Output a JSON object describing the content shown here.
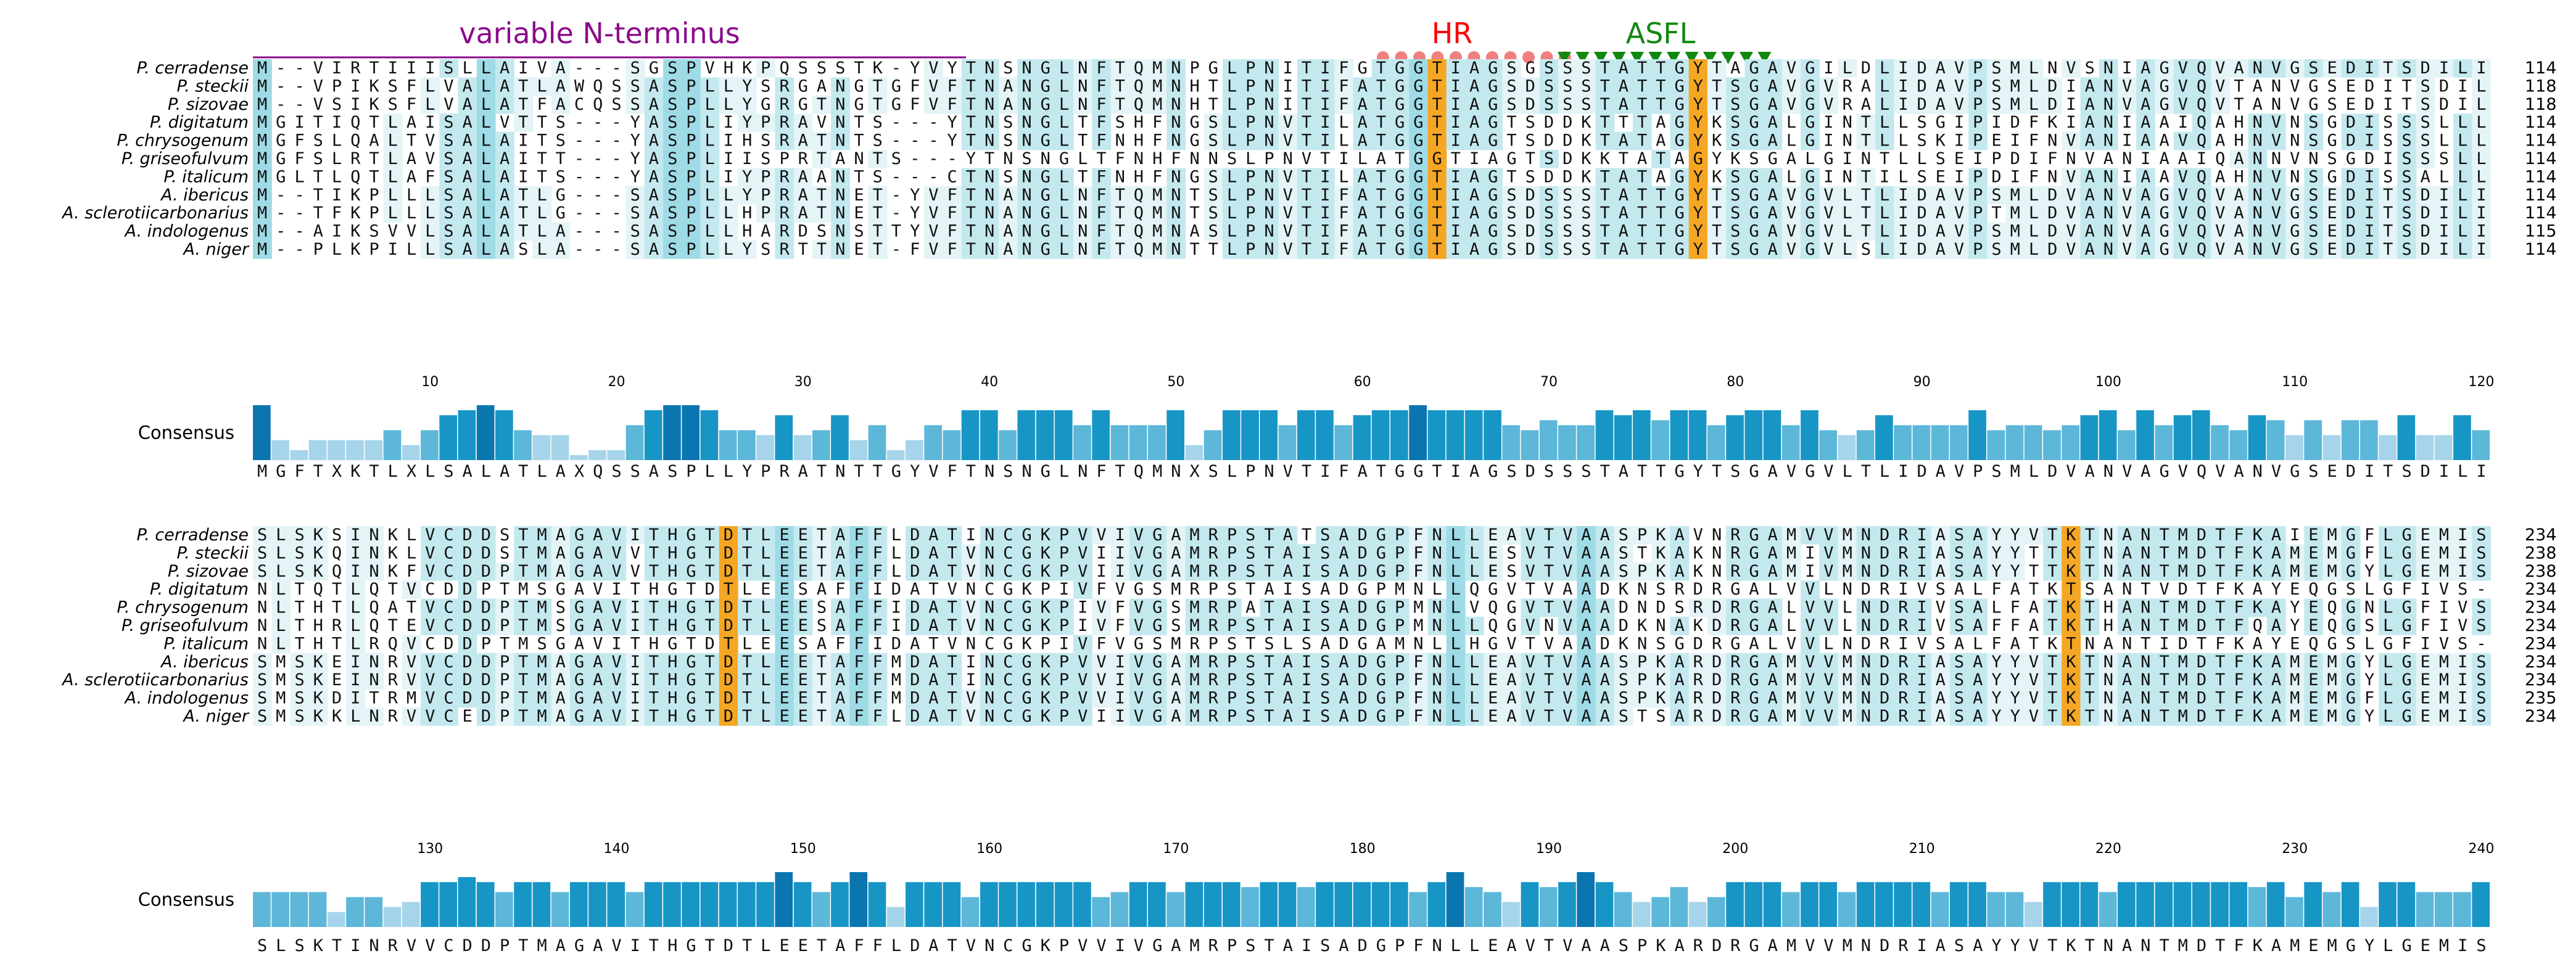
{
  "annotations": {
    "variable_n_terminus": {
      "label": "variable N-terminus",
      "color": "#8b0a8b"
    },
    "hr": {
      "label": "HR",
      "color": "#ff0000",
      "marker_color": "#f08080",
      "marker": "circle-icon",
      "count": 11
    },
    "asfl": {
      "label": "ASFL",
      "color": "#118811",
      "marker_color": "#118811",
      "marker": "triangle-down-icon",
      "count": 12
    }
  },
  "colors": {
    "highlight_orange": "#f5a623",
    "cons_dark": "#0b75b0",
    "cons_mid": "#1796c6",
    "cons_light": "#5cb7d8",
    "cons_pale": "#a6d4ea",
    "res_dark": "#9edbe6",
    "res_mid": "#c3e9ef",
    "res_light": "#e4f4f7"
  },
  "blocks": [
    {
      "start": 1,
      "names": [
        "P. cerradense",
        "P. steckii",
        "P. sizovae",
        "P. digitatum",
        "P. chrysogenum",
        "P. griseofulvum",
        "P. italicum",
        "A. ibericus",
        "A. sclerotiicarbonarius",
        "A. indologenus",
        "A. niger"
      ],
      "sequences": [
        "M--VIRTIIISLLAIVA---SGSPVHKPQSSSTK-YVYTNSNGLNFTQMNPGLPNITIFGTGGTIAGSGSSSTATTGYTAGAVGILDLIDAVPSMLNVSNIAGVQVANVGSEDITSDILI",
        "M--VPIKSFLVALATLAWQSSASPLLYSRGANGTGFVFTNANGLNFTQMNHTLPNITIFATGGTIAGSDSSSTATTGYTSGAVGVRALIDAVPSMLDIANVAGVQVTANVGSEDITSDILI",
        "M--VSIKSFLVALATFACQSSASPLLYGRGTNGTGFVFTNANGLNFTQMNHTLPNITIFATGGTIAGSDSSSTATTGYTSGAVGVRALIDAVPSMLDIANVAGVQVTANVGSEDITSDILI",
        "MGITIQTLAISALVTTS---YASPLIYPRAVNTS---YTNSNGLTFSHFNGSLPNVTILATGGTIAGTSDDKTTTAGYKSGALGINTLLSGIPIDFKIANIAAIQAHNVNSGDISSSLLL",
        "MGFSLQALTVSALAITS---YASPLIHSRATNTS---YTNSNGLTFNHFNGSLPNVTILATGGTIAGTSDDKTATAGYKSGALGINTLLSKIPEIFNVANIAAVQAHNVNSGDISSSLLL",
        "MGFSLRTLAVSALAITT---YASPLIISPRTANTS---YTNSNGLTFNHFNNSLPNVTILATGGTIAGTSDKKTATAGYKSGALGINTLLSEIPDIFNVANIAAIQANNVNSGDISSSLLL",
        "MGLTLQTLAFSALAITS---YASPLIYPRAANTS---CTNSNGLTFNHFNGSLPNVTILATGGTIAGTSDDKTATAGYKSGALGINTILSEIPDIFNVANIAAVQAHNVNSGDISSALLL",
        "M--TIKPLLLSALATLG---SASPLLYPRATNET-YVFTNANGLNFTQMNTSLPNVTIFATGGTIAGSDSSSTATTGYTSGAVGVLTLIDAVPSMLDVANVAGVQVANVGSEDITSDILI",
        "M--TFKPLLLSALATLG---SASPLLHPRATNET-YVFTNANGLNFTQMNTSLPNVTIFATGGTIAGSDSSSTATTGYTSGAVGVLTLIDAVPTMLDVANVAGVQVANVGSEDITSDILI",
        "M--AIKSVVLSALATLA---SASPLLHARDSNSTTYVFTNANGLNFTQMNASLPNVTIFATGGTIAGSDSSSTATTGYTSGAVGVLTLIDAVPSMLDVANVAGVQVANVGSEDITSDILI",
        "M--PLKPILLSALASLA---SASPLLYSRTTNET-FVFTNANGLNFTQMNTTLPNVTIFATGGTIAGSDSSSTATTGYTSGAVGVLSLIDAVPSMLDVANVAGVQVANVGSEDITSDILI"
      ],
      "counts": [
        "114",
        "118",
        "118",
        "114",
        "114",
        "114",
        "114",
        "114",
        "114",
        "115",
        "114"
      ],
      "ticks": [
        "10",
        "20",
        "30",
        "40",
        "50",
        "60",
        "70",
        "80",
        "90",
        "100",
        "110",
        "120"
      ],
      "consensus_label": "Consensus",
      "consensus": "MGFTXKTLXLSALATLAXQSSASPLLYPRATNTTGYVFTNSNGLNFTQMNXSLPNVTIFATGGTIAGSDSSSTATTGYTSGAVGVLTLIDAVPSMLDVANVAGVQVANVGSEDITSDILI",
      "highlight_columns": [
        64,
        78
      ]
    },
    {
      "start": 121,
      "names": [
        "P. cerradense",
        "P. steckii",
        "P. sizovae",
        "P. digitatum",
        "P. chrysogenum",
        "P. griseofulvum",
        "P. italicum",
        "A. ibericus",
        "A. sclerotiicarbonarius",
        "A. indologenus",
        "A. niger"
      ],
      "sequences": [
        "SLSKSINKLVCDDSTMAGAVITHGTDTLEETAFFLDATINCGKPVVIVGAMRPSTATSADGPFNLLEAVTVAASPKAVNRGAMVVMNDRIASAYYVTKTNANTMDTFKAIEMGFLGEMIS",
        "SLSKQINKLVCDDSTMAGAVVTHGTDTLEETAFFLDATVNCGKPVIIVGAMRPSTAISADGPFNLLESVTVAASTKAKNRGAMIVMNDRIASAYYTTKTNANTMDTFKAMEMGFLGEMIS",
        "SLSKQINKFVCDDPTMAGAVVTHGTDTLEETAFFLDATVNCGKPVIIVGAMRPSTAISADGPFNLLESVTVAASPKAKNRGAMIVMNDRIASAYYTTKTNANTMDTFKAMEMGYLGEMIS",
        "NLTQTLQTVCDDPTMSGAVITHGTDTLEESAFFIDATVNCGKPIVFVGSMRPSTAISADGPMNLLQGVTVAADKNSRDRGALVVLNDRIVSALFATKTSANTVDTFKAYEQGSLGFIVS",
        "NLTHTLQATVCDDPTMSGAVITHGTDTLEESAFFIDATVNCGKPIVFVGSMRPATAISADGPMNLVQGVTVAADNDSRDRGALVVLNDRIVSALFATKTHANTMDTFKAYEQGNLGFIVS",
        "NLTHRLQTEVCDDPTMSGAVITHGTDTLEESAFFIDATVNCGKPIVFVGSMRPSTAISADGPMNLLQGVNVAADKNAKDRGALVVLNDRIVSAFFATKTHANTMDTFQAYEQGSLGFIVS",
        "NLTHTLRQVCDDPTMSGAVITHGTDTLEESAFFIDATVNCGKPIVFVGSMRPSTSLSADGAMNLLHGVTVAADKNSGDRGALVVLNDRIVSALFATKTNANTIDTFKAYEQGSLGFIVS",
        "SMSKEINRVVCDDPTMAGAVITHGTDTLEETAFFMDATINCGKPVVIVGAMRPSTAISADGPFNLLEAVTVAASPKARDRGAMVVMNDRIASAYYVTKTNANTMDTFKAMEMGYLGEMIS",
        "SMSKEINRVVCDDPTMAGAVITHGTDTLEETAFFMDATINCGKPVVIVGAMRPSTAISADGPFNLLEAVTVAASPKARDRGAMVVMNDRIASAYYVTKTNANTMDTFKAMEMGYLGEMIS",
        "SMSKDITRMVCDDPTMAGAVITHGTDTLEETAFFMDATVNCGKPVVIVGAMRPSTAISADGPFNLLEAVTVAASPKARDRGAMVVMNDRIASAYYVTKTNANTMDTFKAMEMGFLGEMIS",
        "SMSKKLNRVVCEDPTMAGAVITHGTDTLEETAFFLDATVNCGKPVIIVGAMRPSTAISADGPFNLLEAVTVAASTSARDRGAMVVMNDRIASAYYVTKTNANTMDTFKAMEMGYLGEMIS"
      ],
      "counts": [
        "234",
        "238",
        "238",
        "234",
        "234",
        "234",
        "234",
        "234",
        "234",
        "235",
        "234"
      ],
      "ticks": [
        "130",
        "140",
        "150",
        "160",
        "170",
        "180",
        "190",
        "200",
        "210",
        "220",
        "230",
        "240"
      ],
      "consensus_label": "Consensus",
      "consensus": "SLSKTINRVVCDDPTMAGAVITHGTDTLEETAFFLDATVNCGKPVVIVGAMRPSTAISADGPFNLLEAVTVAASPKARDRGAMVVMNDRIASAYYVTKTNANTMDTFKAMEMGYLGEMIS",
      "highlight_columns": [
        146,
        218
      ]
    }
  ]
}
